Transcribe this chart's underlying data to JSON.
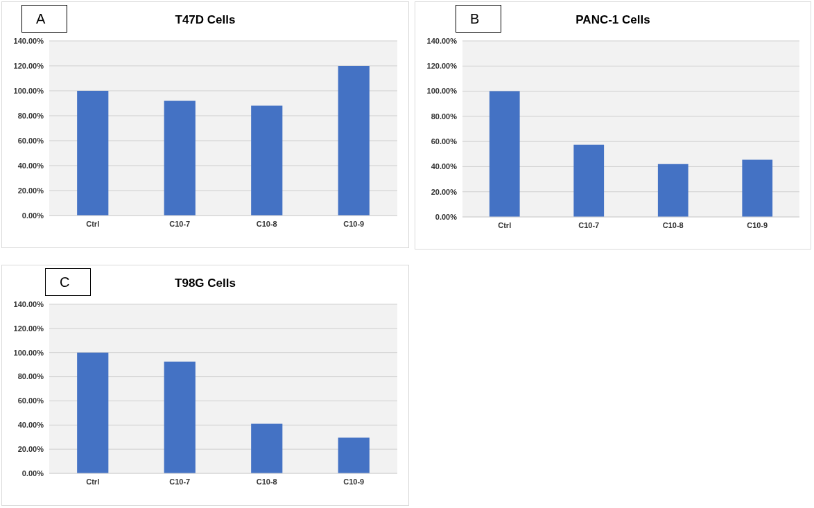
{
  "chart_data": [
    {
      "type": "bar",
      "title": "T47D Cells",
      "annotations": [
        "A"
      ],
      "categories": [
        "Ctrl",
        "C10-7",
        "C10-8",
        "C10-9"
      ],
      "values": [
        100,
        92,
        88,
        120
      ],
      "color": "#4472c4",
      "ylim": [
        0,
        140
      ],
      "yticks": [
        {
          "value": 0,
          "label": "0.00%"
        },
        {
          "value": 20,
          "label": "20.00%"
        },
        {
          "value": 40,
          "label": "40.00%"
        },
        {
          "value": 60,
          "label": "60.00%"
        },
        {
          "value": 80,
          "label": "80.00%"
        },
        {
          "value": 100,
          "label": "100.00%"
        },
        {
          "value": 120,
          "label": "120.00%"
        },
        {
          "value": 140,
          "label": "140.00%"
        }
      ],
      "grid": "y"
    },
    {
      "type": "bar",
      "title": "PANC-1 Cells",
      "annotations": [
        "B"
      ],
      "categories": [
        "Ctrl",
        "C10-7",
        "C10-8",
        "C10-9"
      ],
      "values": [
        100,
        57.5,
        42,
        45.5
      ],
      "color": "#4472c4",
      "ylim": [
        0,
        140
      ],
      "yticks": [
        {
          "value": 0,
          "label": "0.00%"
        },
        {
          "value": 20,
          "label": "20.00%"
        },
        {
          "value": 40,
          "label": "40.00%"
        },
        {
          "value": 60,
          "label": "60.00%"
        },
        {
          "value": 80,
          "label": "80.00%"
        },
        {
          "value": 100,
          "label": "100.00%"
        },
        {
          "value": 120,
          "label": "120.00%"
        },
        {
          "value": 140,
          "label": "140.00%"
        }
      ],
      "grid": "y"
    },
    {
      "type": "bar",
      "title": "T98G Cells",
      "annotations": [
        "C"
      ],
      "categories": [
        "Ctrl",
        "C10-7",
        "C10-8",
        "C10-9"
      ],
      "values": [
        100,
        92.5,
        41,
        29.5
      ],
      "color": "#4472c4",
      "ylim": [
        0,
        140
      ],
      "yticks": [
        {
          "value": 0,
          "label": "0.00%"
        },
        {
          "value": 20,
          "label": "20.00%"
        },
        {
          "value": 40,
          "label": "40.00%"
        },
        {
          "value": 60,
          "label": "60.00%"
        },
        {
          "value": 80,
          "label": "80.00%"
        },
        {
          "value": 100,
          "label": "100.00%"
        },
        {
          "value": 120,
          "label": "120.00%"
        },
        {
          "value": 140,
          "label": "140.00%"
        }
      ],
      "grid": "y"
    }
  ]
}
